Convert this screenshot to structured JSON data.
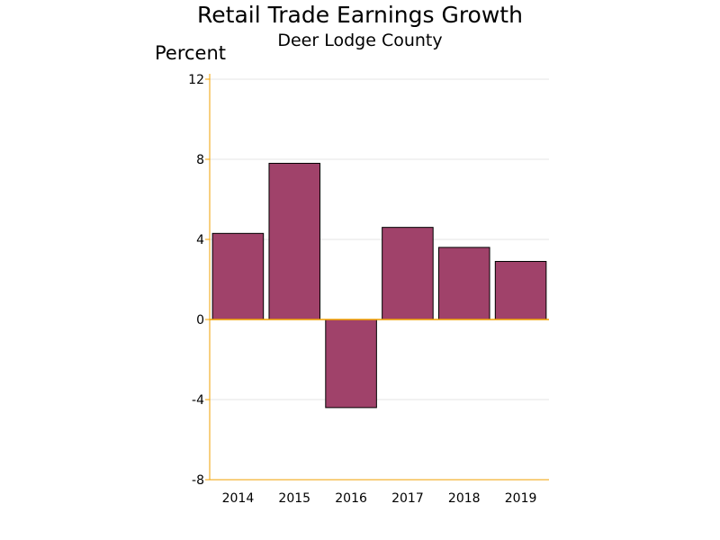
{
  "chart_data": {
    "type": "bar",
    "title": "Retail Trade Earnings Growth",
    "subtitle": "Deer Lodge County",
    "ylabel": "Percent",
    "xlabel": "",
    "categories": [
      "2014",
      "2015",
      "2016",
      "2017",
      "2018",
      "2019"
    ],
    "values": [
      4.3,
      7.8,
      -4.4,
      4.6,
      3.6,
      2.9
    ],
    "ylim": [
      -8,
      12
    ],
    "yticks": [
      "-8",
      "-4",
      "0",
      "4",
      "8",
      "12"
    ],
    "grid": true,
    "legend": "none",
    "colors": {
      "bar": "#a0426a",
      "bar_edge": "#000000",
      "axis": "#f0a000",
      "grid": "#e6e6e6"
    }
  }
}
